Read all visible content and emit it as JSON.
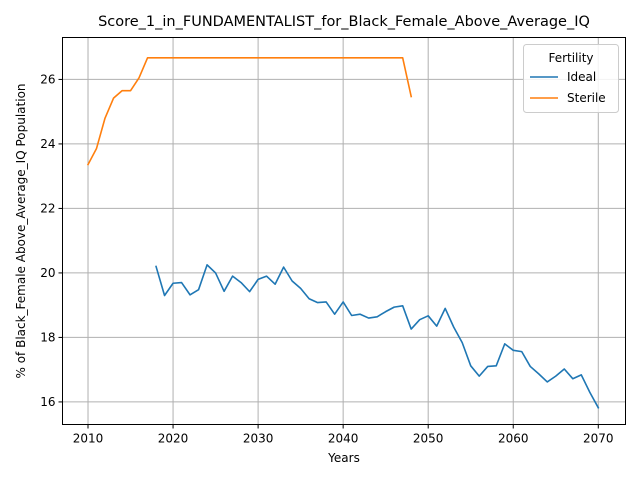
{
  "chart_data": {
    "type": "line",
    "title": "Score_1_in_FUNDAMENTALIST_for_Black_Female_Above_Average_IQ",
    "xlabel": "Years",
    "ylabel": "% of Black_Female Above_Average_IQ Population",
    "xlim": [
      2007,
      2073.2
    ],
    "ylim": [
      15.3,
      27.3
    ],
    "xticks": [
      2010,
      2020,
      2030,
      2040,
      2050,
      2060,
      2070
    ],
    "yticks": [
      16,
      18,
      20,
      22,
      24,
      26
    ],
    "grid": true,
    "legend": {
      "title": "Fertility",
      "position": "top-right"
    },
    "series": [
      {
        "name": "Ideal",
        "color": "#1f77b4",
        "x": [
          2018,
          2019,
          2020,
          2021,
          2022,
          2023,
          2024,
          2025,
          2026,
          2027,
          2028,
          2029,
          2030,
          2031,
          2032,
          2033,
          2034,
          2035,
          2036,
          2037,
          2038,
          2039,
          2040,
          2041,
          2042,
          2043,
          2044,
          2045,
          2046,
          2047,
          2048,
          2049,
          2050,
          2051,
          2052,
          2053,
          2054,
          2055,
          2056,
          2057,
          2058,
          2059,
          2060,
          2061,
          2062,
          2063,
          2064,
          2065,
          2066,
          2067,
          2068,
          2069,
          2070
        ],
        "values": [
          20.2,
          19.3,
          19.68,
          19.7,
          19.32,
          19.48,
          20.25,
          20.0,
          19.43,
          19.9,
          19.7,
          19.42,
          19.8,
          19.9,
          19.65,
          20.18,
          19.75,
          19.52,
          19.2,
          19.08,
          19.1,
          18.72,
          19.1,
          18.68,
          18.72,
          18.6,
          18.64,
          18.8,
          18.94,
          18.98,
          18.26,
          18.55,
          18.67,
          18.35,
          18.9,
          18.32,
          17.84,
          17.12,
          16.8,
          17.1,
          17.12,
          17.8,
          17.6,
          17.56,
          17.1,
          16.87,
          16.62,
          16.8,
          17.02,
          16.72,
          16.84,
          16.3,
          15.82
        ]
      },
      {
        "name": "Sterile",
        "color": "#ff7f0e",
        "x": [
          2010,
          2011,
          2012,
          2013,
          2014,
          2015,
          2016,
          2017,
          2018,
          2019,
          2020,
          2021,
          2022,
          2023,
          2024,
          2025,
          2026,
          2027,
          2028,
          2029,
          2030,
          2031,
          2032,
          2033,
          2034,
          2035,
          2036,
          2037,
          2038,
          2039,
          2040,
          2041,
          2042,
          2043,
          2044,
          2045,
          2046,
          2047,
          2048
        ],
        "values": [
          23.36,
          23.86,
          24.8,
          25.42,
          25.65,
          25.65,
          26.05,
          26.67,
          26.67,
          26.67,
          26.67,
          26.67,
          26.67,
          26.67,
          26.67,
          26.67,
          26.67,
          26.67,
          26.67,
          26.67,
          26.67,
          26.67,
          26.67,
          26.67,
          26.67,
          26.67,
          26.67,
          26.67,
          26.67,
          26.67,
          26.67,
          26.67,
          26.67,
          26.67,
          26.67,
          26.67,
          26.67,
          26.67,
          25.47
        ]
      }
    ]
  }
}
